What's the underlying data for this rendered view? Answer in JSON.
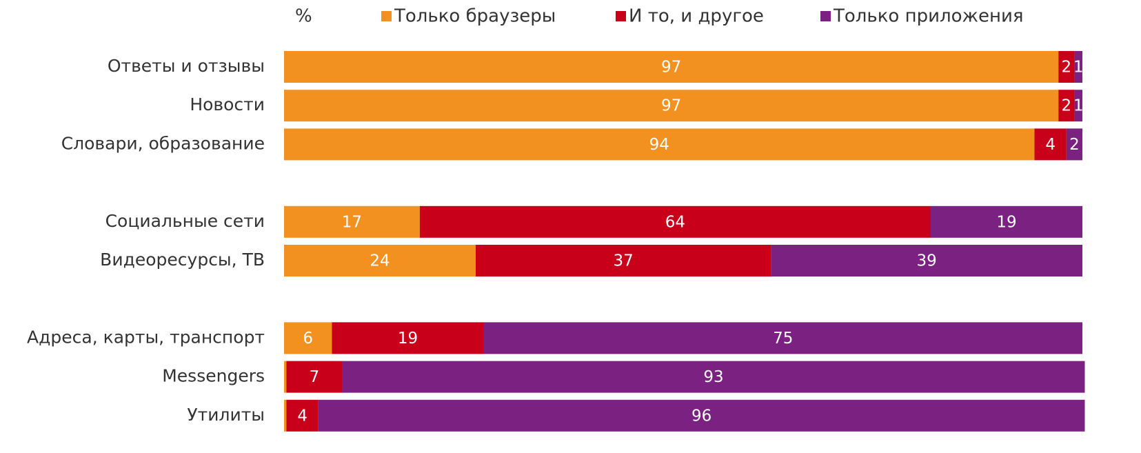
{
  "chart_data": {
    "type": "stacked_bar_horizontal",
    "unit_label": "%",
    "categories": [
      "Ответы и отзывы",
      "Новости",
      "Словари, образование",
      null,
      "Социальные сети",
      "Видеоресурсы, ТВ",
      null,
      "Адреса, карты, транспорт",
      "Messengers",
      "Утилиты"
    ],
    "series": [
      {
        "name": "Только браузеры",
        "color": "#f39120",
        "values": [
          97,
          97,
          94,
          null,
          17,
          24,
          null,
          6,
          0.3,
          0.3
        ]
      },
      {
        "name": "И то, и другое",
        "color": "#c8001a",
        "values": [
          2,
          2,
          4,
          null,
          64,
          37,
          null,
          19,
          7,
          4
        ]
      },
      {
        "name": "Только приложения",
        "color": "#7b2181",
        "values": [
          1,
          1,
          2,
          null,
          19,
          39,
          null,
          75,
          93,
          96
        ]
      }
    ],
    "xlim": [
      0,
      100
    ]
  }
}
